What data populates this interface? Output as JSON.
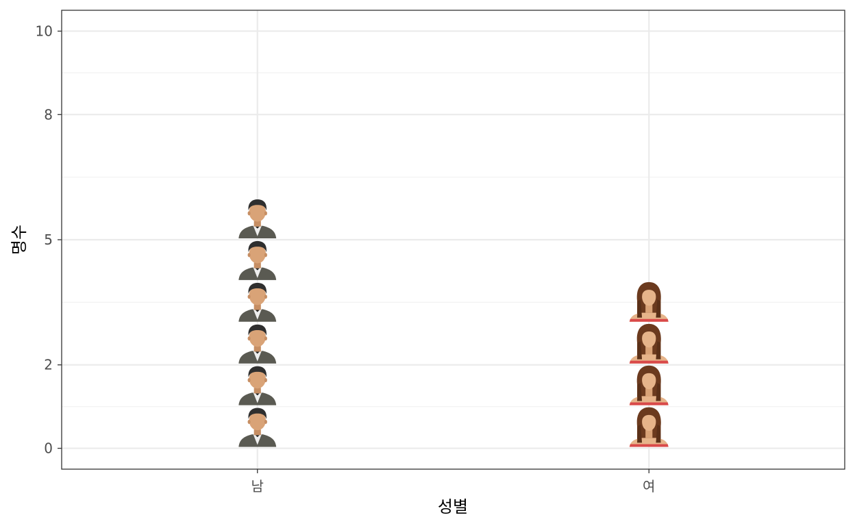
{
  "chart_data": {
    "type": "pictogram",
    "title": "",
    "xlabel": "성별",
    "ylabel": "명수",
    "categories": [
      "남",
      "여"
    ],
    "values": [
      6,
      4
    ],
    "icons": [
      "male-person-icon",
      "female-person-icon"
    ],
    "ylim": [
      -0.5,
      10.5
    ],
    "yticks": [
      0,
      2,
      5,
      8,
      10
    ],
    "y_minor_gridlines": [
      1,
      3.5,
      6.5,
      9
    ],
    "grid": true,
    "legend": "none",
    "colors": {
      "background": "#ffffff",
      "panel_border": "#333333",
      "grid_major": "#ebebeb",
      "grid_minor": "#f2f2f2",
      "male_suit": "#5a5a52",
      "male_skin": "#d9a377",
      "male_hair": "#2f2f2f",
      "female_hair": "#6b3a1e",
      "female_skin": "#e6b48a",
      "female_top": "#d94a4a"
    }
  }
}
